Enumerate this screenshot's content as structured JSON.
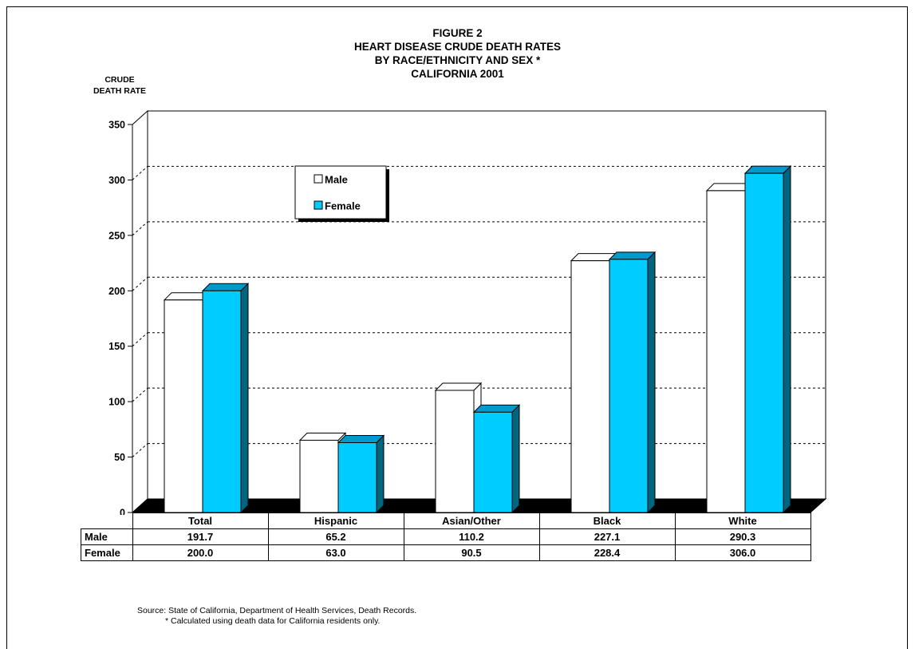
{
  "figure_label": "FIGURE 2",
  "title_lines": [
    "HEART DISEASE CRUDE DEATH RATES",
    "BY RACE/ETHNICITY AND SEX *",
    "CALIFORNIA 2001"
  ],
  "ylabel_lines": [
    "CRUDE",
    "DEATH RATE"
  ],
  "source": "Source:  State of California, Department of Health Services, Death Records.",
  "footnote": "*  Calculated using death data for California residents only.",
  "colors": {
    "male": "#ffffff",
    "female": "#00ccff",
    "female_dark": "#00667f",
    "floor": "#000000"
  },
  "chart_data": {
    "type": "bar",
    "title": "HEART DISEASE CRUDE DEATH RATES BY RACE/ETHNICITY AND SEX * CALIFORNIA 2001",
    "ylabel": "CRUDE DEATH RATE",
    "xlabel": "",
    "categories": [
      "Total",
      "Hispanic",
      "Asian/Other",
      "Black",
      "White"
    ],
    "series": [
      {
        "name": "Male",
        "values": [
          191.7,
          65.2,
          110.2,
          227.1,
          290.3
        ]
      },
      {
        "name": "Female",
        "values": [
          200.0,
          63.0,
          90.5,
          228.4,
          306.0
        ]
      }
    ],
    "ylim": [
      0,
      350
    ],
    "yticks": [
      0,
      50,
      100,
      150,
      200,
      250,
      300,
      350
    ],
    "grid": true,
    "legend_position": "top-left",
    "data_table": {
      "rows": [
        {
          "label": "Male",
          "values": [
            "191.7",
            "65.2",
            "110.2",
            "227.1",
            "290.3"
          ]
        },
        {
          "label": "Female",
          "values": [
            "200.0",
            "63.0",
            "90.5",
            "228.4",
            "306.0"
          ]
        }
      ]
    }
  }
}
